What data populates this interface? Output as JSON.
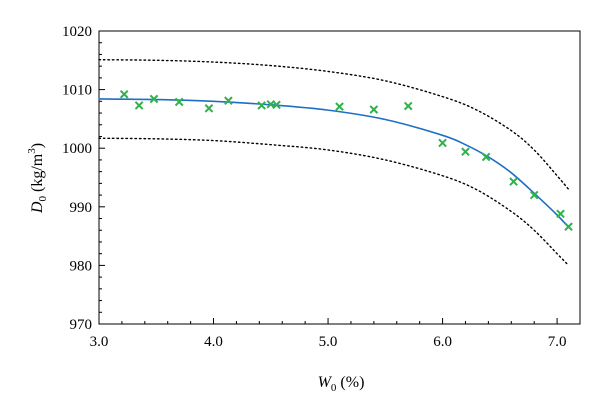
{
  "chart_data": {
    "type": "scatter",
    "xlabel": {
      "main": "W",
      "sub": "0",
      "rest": " (%)"
    },
    "ylabel": {
      "main": "D",
      "sub": "0",
      "rest": " (kg/m",
      "sup": "3",
      "close": ")"
    },
    "xlim": [
      3.0,
      7.2
    ],
    "ylim": [
      970,
      1020
    ],
    "xticks": [
      3.0,
      4.0,
      5.0,
      6.0,
      7.0
    ],
    "xtick_labels": [
      "3.0",
      "4.0",
      "5.0",
      "6.0",
      "7.0"
    ],
    "yticks": [
      970,
      980,
      990,
      1000,
      1010,
      1020
    ],
    "ytick_labels": [
      "970",
      "980",
      "990",
      "1000",
      "1010",
      "1020"
    ],
    "grid": false,
    "legend": "none",
    "colors": {
      "points": "#2db34a",
      "fit": "#1f6fc5",
      "bounds": "#000000"
    },
    "series": [
      {
        "kind": "scatter",
        "marker": "x",
        "x": [
          3.22,
          3.35,
          3.48,
          3.7,
          3.96,
          4.13,
          4.42,
          4.5,
          4.55,
          5.1,
          5.4,
          5.7,
          6.0,
          6.2,
          6.38,
          6.62,
          6.8,
          7.03,
          7.1
        ],
        "y": [
          1009.2,
          1007.3,
          1008.4,
          1007.9,
          1006.8,
          1008.1,
          1007.3,
          1007.5,
          1007.4,
          1007.1,
          1006.6,
          1007.2,
          1000.9,
          999.4,
          998.5,
          994.3,
          992.0,
          988.8,
          986.6
        ]
      },
      {
        "kind": "line",
        "style": "solid",
        "x": [
          3.0,
          3.5,
          4.0,
          4.5,
          5.0,
          5.5,
          6.0,
          6.2,
          6.4,
          6.6,
          6.8,
          7.0,
          7.1
        ],
        "y": [
          1008.4,
          1008.3,
          1008.0,
          1007.4,
          1006.5,
          1004.9,
          1002.2,
          1000.6,
          998.5,
          995.8,
          992.3,
          988.6,
          986.5
        ]
      },
      {
        "kind": "line",
        "style": "dotted",
        "x": [
          3.0,
          3.5,
          4.0,
          4.5,
          5.0,
          5.5,
          6.0,
          6.3,
          6.6,
          6.8,
          7.0,
          7.1
        ],
        "y": [
          1015.1,
          1015.0,
          1014.7,
          1014.1,
          1013.1,
          1011.5,
          1008.8,
          1006.5,
          1003.0,
          999.7,
          995.3,
          993.0
        ]
      },
      {
        "kind": "line",
        "style": "dotted",
        "x": [
          3.0,
          3.5,
          4.0,
          4.5,
          5.0,
          5.5,
          6.0,
          6.3,
          6.6,
          6.8,
          7.0,
          7.1
        ],
        "y": [
          1001.7,
          1001.6,
          1001.3,
          1000.6,
          999.7,
          998.0,
          995.3,
          992.9,
          989.2,
          986.0,
          982.0,
          980.0
        ]
      }
    ]
  }
}
